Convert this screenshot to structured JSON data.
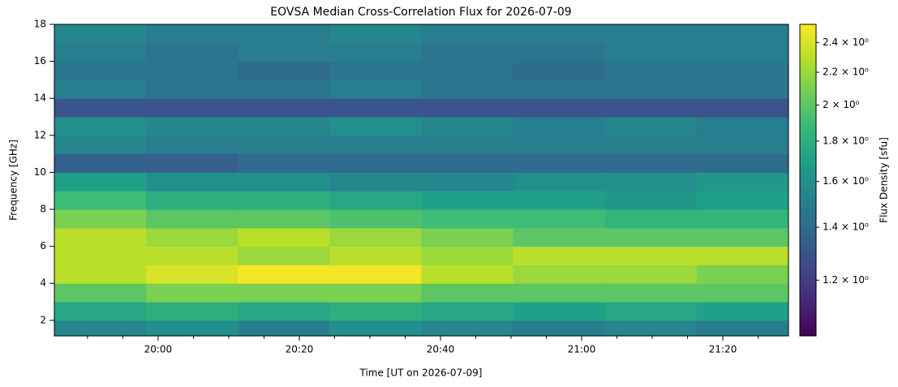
{
  "chart_data": {
    "type": "heatmap",
    "title": "EOVSA Median Cross-Correlation Flux for 2026-07-09",
    "xlabel": "Time [UT on 2026-07-09]",
    "ylabel": "Frequency [GHz]",
    "colorbar_label": "Flux Density [sfu]",
    "colormap": "viridis",
    "x": [
      1185.3,
      1198.3,
      1211.3,
      1224.3,
      1237.3,
      1250.3,
      1263.3,
      1276.3,
      1289.3
    ],
    "y": [
      1.16,
      2,
      3,
      4,
      5,
      6,
      7,
      8,
      9,
      10,
      11,
      12,
      13,
      14,
      15,
      16,
      17,
      18
    ],
    "values": [
      [
        1.55,
        1.6,
        1.5,
        1.6,
        1.55,
        1.5,
        1.55,
        1.5
      ],
      [
        1.75,
        1.8,
        1.75,
        1.8,
        1.75,
        1.7,
        1.75,
        1.7
      ],
      [
        2.0,
        2.1,
        2.1,
        2.1,
        2.0,
        2.0,
        2.0,
        2.0
      ],
      [
        2.3,
        2.4,
        2.5,
        2.5,
        2.3,
        2.2,
        2.2,
        2.1
      ],
      [
        2.3,
        2.3,
        2.2,
        2.3,
        2.2,
        2.3,
        2.3,
        2.3
      ],
      [
        2.3,
        2.2,
        2.3,
        2.2,
        2.1,
        2.0,
        2.0,
        2.0
      ],
      [
        2.1,
        2.0,
        2.0,
        1.95,
        1.9,
        1.9,
        1.85,
        1.85
      ],
      [
        1.9,
        1.8,
        1.8,
        1.75,
        1.7,
        1.7,
        1.65,
        1.7
      ],
      [
        1.7,
        1.6,
        1.6,
        1.55,
        1.55,
        1.6,
        1.6,
        1.65
      ],
      [
        1.35,
        1.35,
        1.4,
        1.4,
        1.4,
        1.4,
        1.4,
        1.4
      ],
      [
        1.55,
        1.5,
        1.5,
        1.5,
        1.5,
        1.5,
        1.5,
        1.5
      ],
      [
        1.6,
        1.55,
        1.55,
        1.6,
        1.55,
        1.5,
        1.55,
        1.5
      ],
      [
        1.3,
        1.3,
        1.3,
        1.3,
        1.3,
        1.3,
        1.3,
        1.3
      ],
      [
        1.5,
        1.45,
        1.45,
        1.5,
        1.45,
        1.45,
        1.45,
        1.45
      ],
      [
        1.45,
        1.45,
        1.4,
        1.45,
        1.45,
        1.4,
        1.45,
        1.45
      ],
      [
        1.5,
        1.45,
        1.5,
        1.5,
        1.45,
        1.45,
        1.5,
        1.5
      ],
      [
        1.55,
        1.5,
        1.5,
        1.55,
        1.5,
        1.5,
        1.5,
        1.5
      ]
    ],
    "xlim": [
      1185.3,
      1289.3
    ],
    "xticks": [
      {
        "value": 1200,
        "label": "20:00"
      },
      {
        "value": 1220,
        "label": "20:20"
      },
      {
        "value": 1240,
        "label": "20:40"
      },
      {
        "value": 1260,
        "label": "21:00"
      },
      {
        "value": 1280,
        "label": "21:20"
      }
    ],
    "xminorticks": [
      1190,
      1195,
      1205,
      1210,
      1215,
      1225,
      1230,
      1235,
      1245,
      1250,
      1255,
      1265,
      1270,
      1275,
      1285
    ],
    "ylim": [
      1.16,
      18
    ],
    "yticks": [
      2,
      4,
      6,
      8,
      10,
      12,
      14,
      16,
      18
    ],
    "clim": [
      1.02,
      2.53
    ],
    "clog": true,
    "cticks": [
      {
        "value": 1.2,
        "label": "1.2 × 10⁰"
      },
      {
        "value": 1.4,
        "label": "1.4 × 10⁰"
      },
      {
        "value": 1.6,
        "label": "1.6 × 10⁰"
      },
      {
        "value": 1.8,
        "label": "1.8 × 10⁰"
      },
      {
        "value": 2,
        "label": "2 × 10⁰"
      },
      {
        "value": 2.2,
        "label": "2.2 × 10⁰"
      },
      {
        "value": 2.4,
        "label": "2.4 × 10⁰"
      }
    ]
  }
}
